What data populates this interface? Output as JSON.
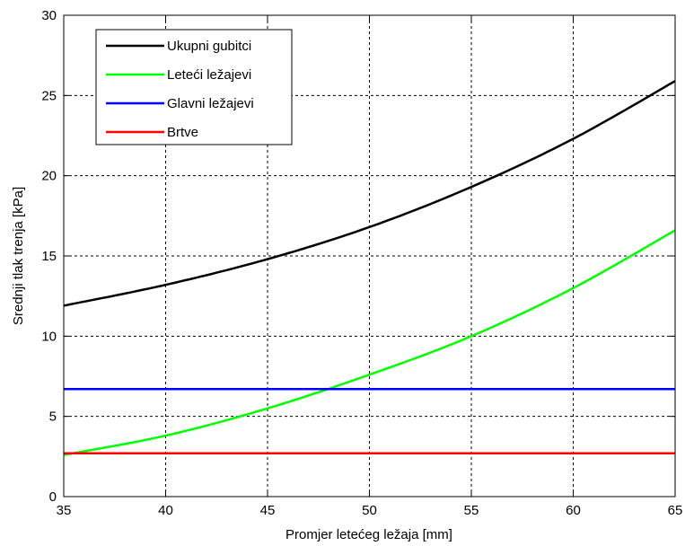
{
  "chart_data": {
    "type": "line",
    "title": "",
    "xlabel": "Promjer letećeg ležaja [mm]",
    "ylabel": "Srednji tlak trenja [kPa]",
    "xlim": [
      35,
      65
    ],
    "ylim": [
      0,
      30
    ],
    "xticks": [
      "35",
      "40",
      "45",
      "50",
      "55",
      "60",
      "65"
    ],
    "yticks": [
      "0",
      "5",
      "10",
      "15",
      "20",
      "25",
      "30"
    ],
    "grid": true,
    "legend_position": "top-left",
    "x": [
      35,
      40,
      45,
      50,
      55,
      60,
      65
    ],
    "series": [
      {
        "name": "Ukupni gubitci",
        "color": "#000000",
        "values": [
          11.9,
          13.2,
          14.8,
          16.8,
          19.3,
          22.3,
          25.9
        ]
      },
      {
        "name": "Leteći ležajevi",
        "color": "#00ff00",
        "values": [
          2.6,
          3.8,
          5.5,
          7.6,
          10.0,
          13.0,
          16.6
        ]
      },
      {
        "name": "Glavni ležajevi",
        "color": "#0000ff",
        "values": [
          6.7,
          6.7,
          6.7,
          6.7,
          6.7,
          6.7,
          6.7
        ]
      },
      {
        "name": "Brtve",
        "color": "#ff0000",
        "values": [
          2.7,
          2.7,
          2.7,
          2.7,
          2.7,
          2.7,
          2.7
        ]
      }
    ]
  }
}
